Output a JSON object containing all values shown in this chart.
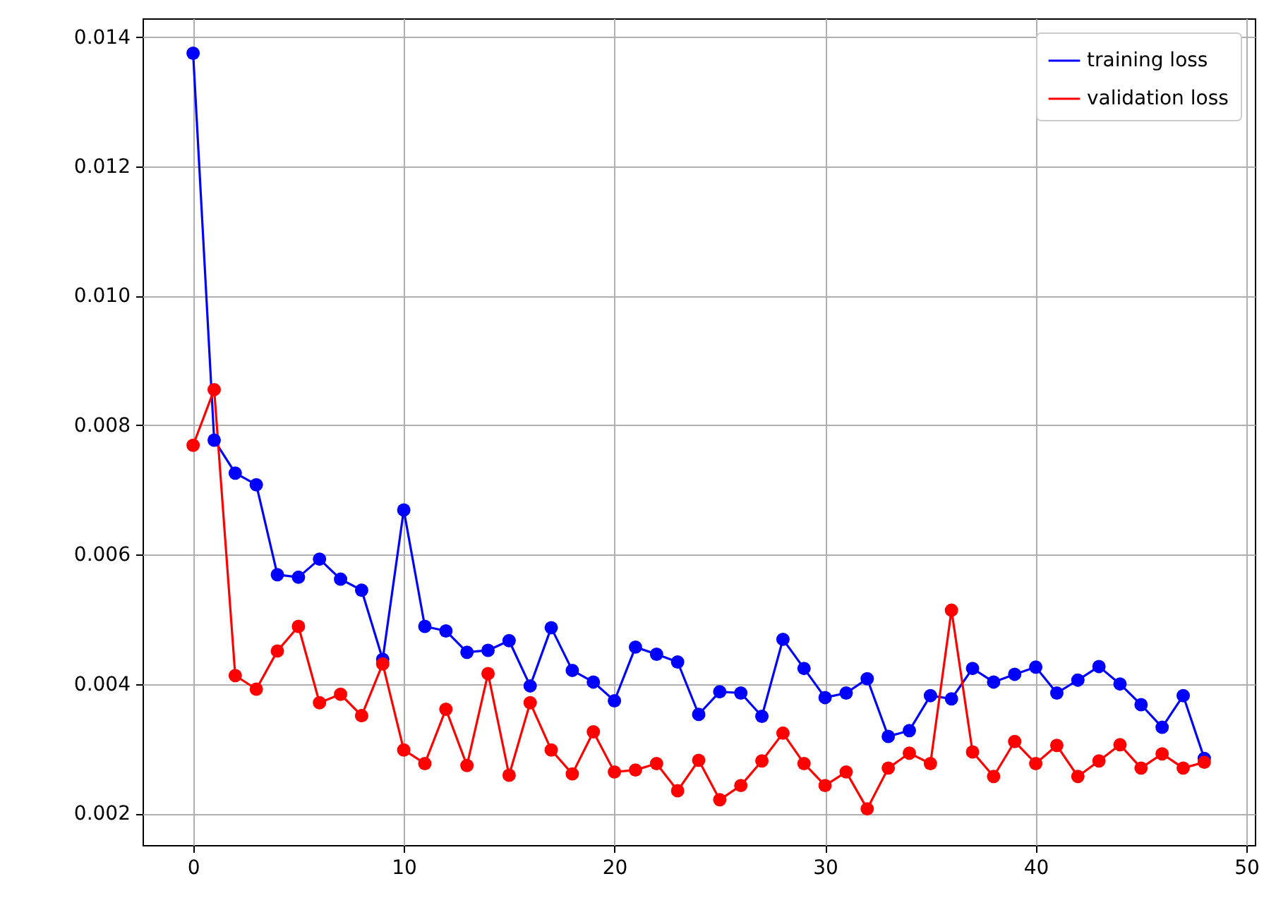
{
  "chart_data": {
    "type": "line",
    "x": [
      0,
      1,
      2,
      3,
      4,
      5,
      6,
      7,
      8,
      9,
      10,
      11,
      12,
      13,
      14,
      15,
      16,
      17,
      18,
      19,
      20,
      21,
      22,
      23,
      24,
      25,
      26,
      27,
      28,
      29,
      30,
      31,
      32,
      33,
      34,
      35,
      36,
      37,
      38,
      39,
      40,
      41,
      42,
      43,
      44,
      45,
      46,
      47,
      48
    ],
    "series": [
      {
        "name": "training loss",
        "color": "#0000ff",
        "values": [
          0.01375,
          0.00777,
          0.00726,
          0.00708,
          0.00569,
          0.00565,
          0.00593,
          0.00562,
          0.00545,
          0.00438,
          0.00669,
          0.00489,
          0.00482,
          0.00449,
          0.00452,
          0.00467,
          0.00397,
          0.00487,
          0.00421,
          0.00403,
          0.00374,
          0.00457,
          0.00446,
          0.00434,
          0.00353,
          0.00388,
          0.00386,
          0.0035,
          0.00469,
          0.00424,
          0.00379,
          0.00386,
          0.00408,
          0.00319,
          0.00328,
          0.00382,
          0.00377,
          0.00424,
          0.00403,
          0.00415,
          0.00426,
          0.00386,
          0.00406,
          0.00427,
          0.004,
          0.00368,
          0.00333,
          0.00382,
          0.00285
        ]
      },
      {
        "name": "validation loss",
        "color": "#ff0000",
        "values": [
          0.00769,
          0.00855,
          0.00413,
          0.00392,
          0.00451,
          0.00489,
          0.00371,
          0.00384,
          0.00351,
          0.00431,
          0.00298,
          0.00277,
          0.00361,
          0.00274,
          0.00416,
          0.00259,
          0.00371,
          0.00298,
          0.00261,
          0.00326,
          0.00264,
          0.00267,
          0.00277,
          0.00235,
          0.00282,
          0.00221,
          0.00243,
          0.00281,
          0.00324,
          0.00277,
          0.00243,
          0.00264,
          0.00207,
          0.0027,
          0.00293,
          0.00277,
          0.00514,
          0.00295,
          0.00257,
          0.00311,
          0.00277,
          0.00305,
          0.00257,
          0.00281,
          0.00306,
          0.0027,
          0.00292,
          0.0027,
          0.00279
        ]
      }
    ],
    "xlim": [
      -2.4,
      50.4
    ],
    "xticks": [
      0,
      10,
      20,
      30,
      40,
      50
    ],
    "ylim": [
      0.00151,
      0.01429
    ],
    "yticks": [
      {
        "value": 0.002,
        "label": "0.002"
      },
      {
        "value": 0.004,
        "label": "0.004"
      },
      {
        "value": 0.006,
        "label": "0.006"
      },
      {
        "value": 0.008,
        "label": "0.008"
      },
      {
        "value": 0.01,
        "label": "0.010"
      },
      {
        "value": 0.012,
        "label": "0.012"
      },
      {
        "value": 0.014,
        "label": "0.014"
      }
    ],
    "grid": true,
    "legend": "top right",
    "marker": "circle",
    "line_style": "solid"
  }
}
